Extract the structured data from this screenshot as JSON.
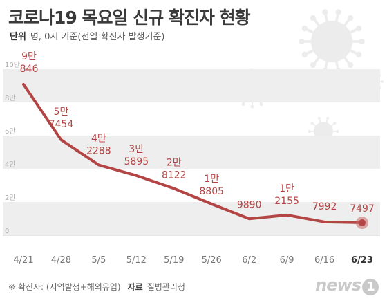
{
  "header": {
    "title": "코로나19 목요일 신규 확진자 현황",
    "unit_label": "단위",
    "unit_text": "명, 0시 기준(전일 확진자 발생기준)"
  },
  "footer": {
    "note": "※ 확진자: (지역발생+해외유입)",
    "source_label": "자료",
    "source": "질병관리청",
    "logo": "news",
    "logo_mark": "1"
  },
  "colors": {
    "line": "#b34545",
    "band": "#eeeeee",
    "highlight": "#c86a6a"
  },
  "chart_data": {
    "type": "line",
    "title": "코로나19 목요일 신규 확진자 현황",
    "categories": [
      "4/21",
      "4/28",
      "5/5",
      "5/12",
      "5/19",
      "5/26",
      "6/2",
      "6/9",
      "6/16",
      "6/23"
    ],
    "values": [
      90846,
      57454,
      42288,
      35895,
      28122,
      18805,
      9890,
      12155,
      7992,
      7497
    ],
    "point_labels": [
      [
        "9만",
        "846"
      ],
      [
        "5만",
        "7454"
      ],
      [
        "4만",
        "2288"
      ],
      [
        "3만",
        "5895"
      ],
      [
        "2만",
        "8122"
      ],
      [
        "1만",
        "8805"
      ],
      [
        "",
        "9890"
      ],
      [
        "1만",
        "2155"
      ],
      [
        "",
        "7992"
      ],
      [
        "",
        "7497"
      ]
    ],
    "y_ticks": [
      {
        "value": 0,
        "label": "0"
      },
      {
        "value": 20000,
        "label": "2만"
      },
      {
        "value": 40000,
        "label": "4만"
      },
      {
        "value": 60000,
        "label": "6만"
      },
      {
        "value": 80000,
        "label": "8만"
      },
      {
        "value": 100000,
        "label": "10만"
      }
    ],
    "ylim": [
      0,
      100000
    ],
    "xlabel": "",
    "ylabel": "",
    "grid": "alternating bands",
    "highlight_last": true
  }
}
